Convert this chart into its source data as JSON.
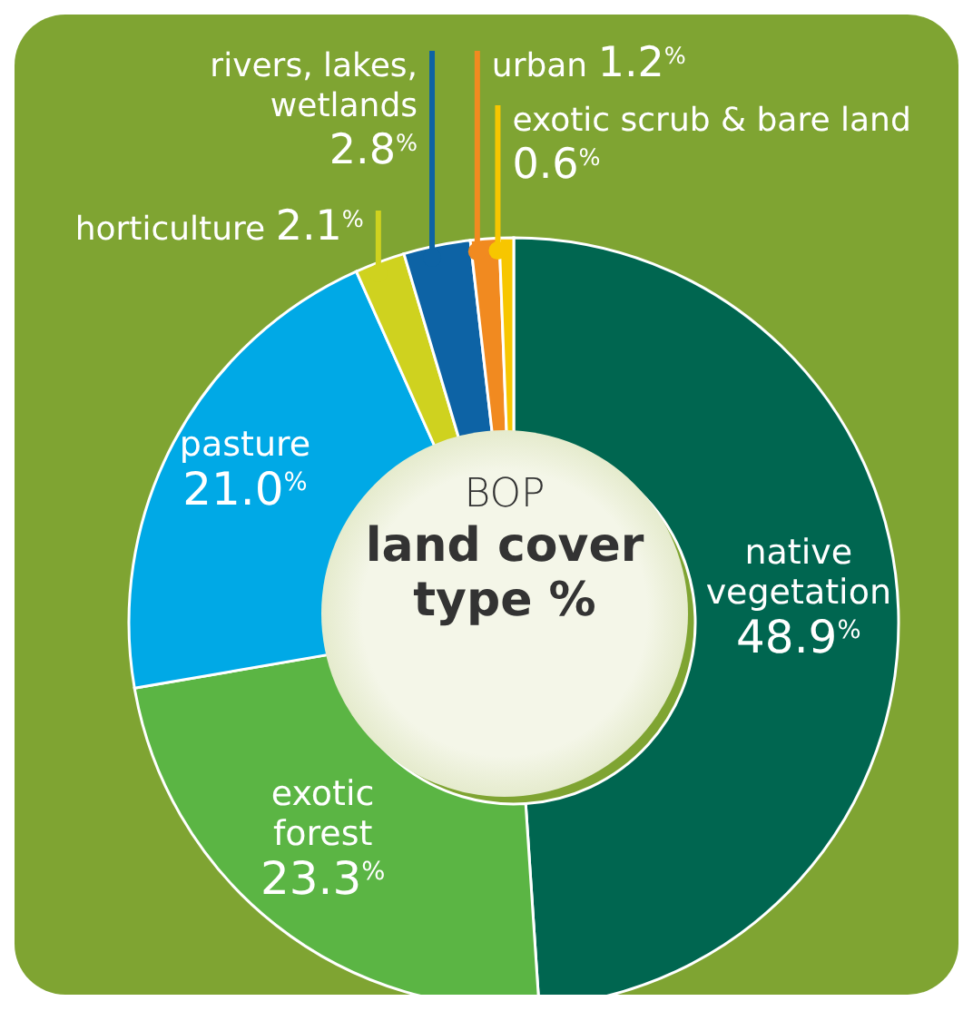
{
  "chart_data": {
    "type": "donut",
    "title": "BOP",
    "subtitle": "land cover type %",
    "categories": [
      "native vegetation",
      "exotic forest",
      "pasture",
      "horticulture",
      "rivers, lakes, wetlands",
      "urban",
      "exotic scrub & bare land"
    ],
    "values": [
      48.9,
      23.3,
      21.0,
      2.1,
      2.8,
      1.2,
      0.6
    ],
    "colors": [
      "#006650",
      "#5bb544",
      "#00a9e6",
      "#cfd21f",
      "#0d63a5",
      "#f18a20",
      "#f7c600"
    ],
    "value_labels": [
      "48.9$^{%}$",
      "23.3$^{%}$",
      "21.0$^{%}$",
      "2.1$^{%}$",
      "2.8$^{%}$",
      "1.2$^{%}$",
      "0.6$^{%}$"
    ]
  }
}
